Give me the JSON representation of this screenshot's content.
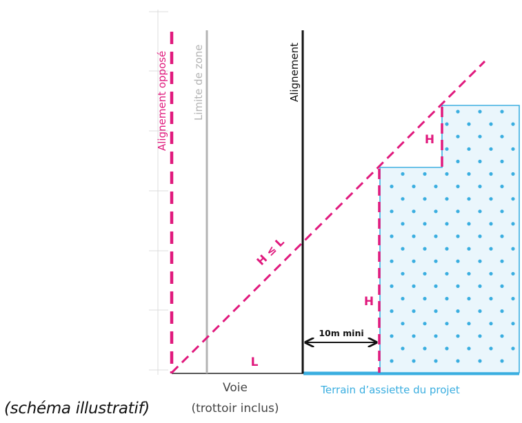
{
  "labels": {
    "alignement_oppose": "Alignement opposé",
    "limite_de_zone": "Limite de zone",
    "alignement": "Alignement",
    "h_le_l": "H ≤ L",
    "h_upper": "H",
    "h_lower": "H",
    "l": "L",
    "ten_m_mini": "10m mini",
    "voie_line1": "Voie",
    "voie_line2": "(trottoir inclus)",
    "terrain": "Terrain d’assiette du projet",
    "caption": "(schéma illustratif)"
  },
  "colors": {
    "magenta": "#e0197d",
    "blue": "#3aaee0",
    "blue_fill": "#eaf6fc",
    "grey": "#b3b3b3",
    "light_grey": "#dcdcdc",
    "black": "#111111",
    "dark_grey": "#555555"
  }
}
